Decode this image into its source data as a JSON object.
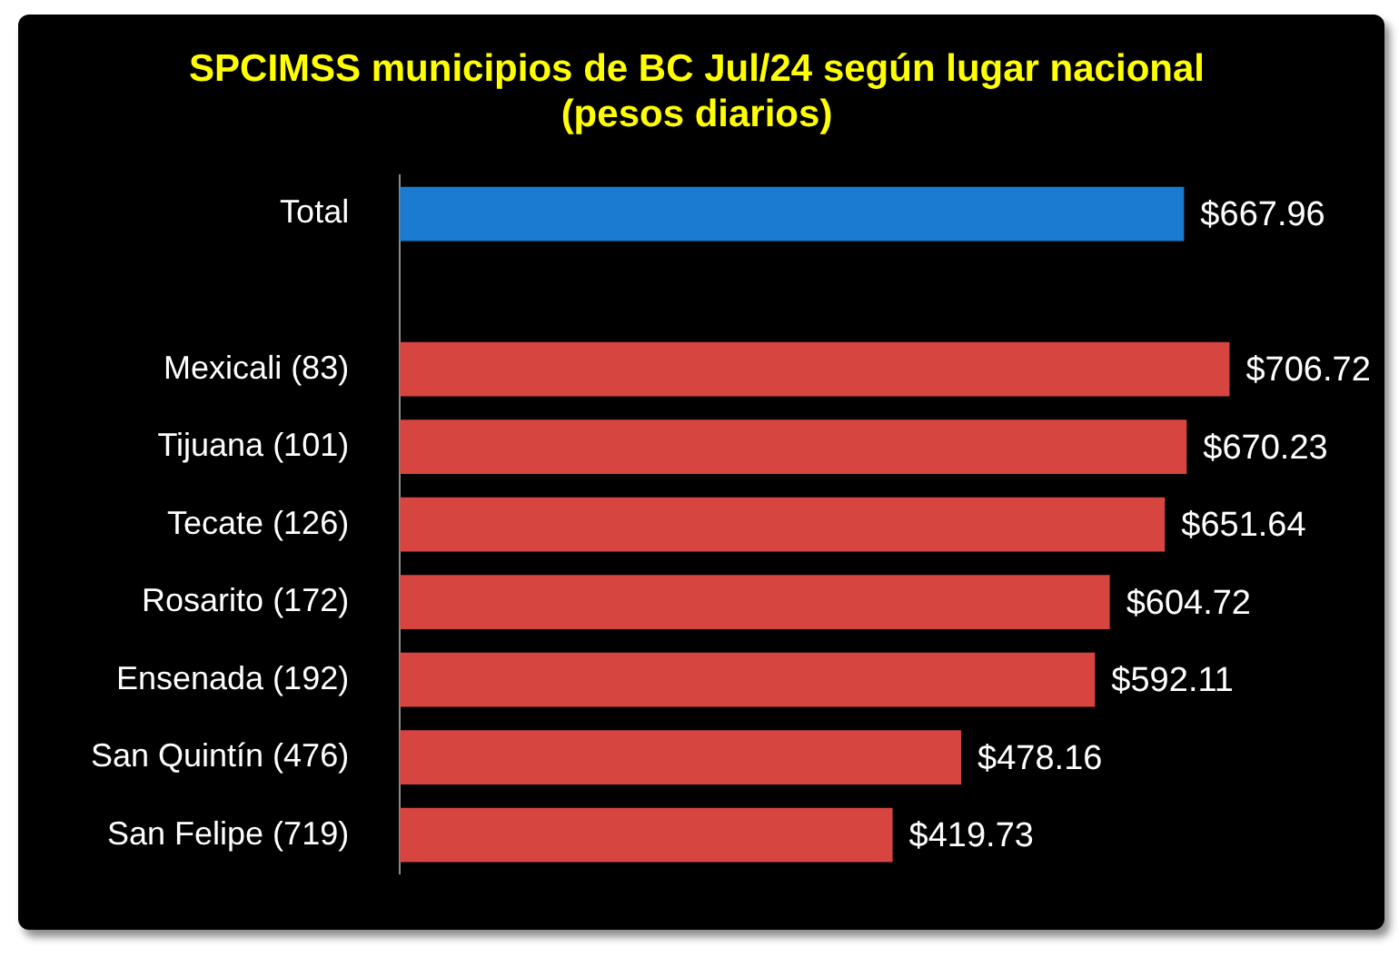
{
  "chart_data": {
    "type": "bar",
    "orientation": "horizontal",
    "title": "SPCIMSS municipios de BC Jul/24 según lugar nacional",
    "subtitle": "(pesos diarios)",
    "categories": [
      "Total",
      null,
      "Mexicali (83)",
      "Tijuana (101)",
      "Tecate (126)",
      "Rosarito (172)",
      "Ensenada (192)",
      "San Quintín (476)",
      "San Felipe (719)"
    ],
    "values": [
      667.96,
      null,
      706.72,
      670.23,
      651.64,
      604.72,
      592.11,
      478.16,
      419.73
    ],
    "colors": [
      "#1a7bd1",
      null,
      "#d6453f",
      "#d6453f",
      "#d6453f",
      "#d6453f",
      "#d6453f",
      "#d6453f",
      "#d6453f"
    ],
    "value_labels": [
      "$667.96",
      null,
      "$706.72",
      "$670.23",
      "$651.64",
      "$604.72",
      "$592.11",
      "$478.16",
      "$419.73"
    ],
    "tick_labels": "y"
  }
}
